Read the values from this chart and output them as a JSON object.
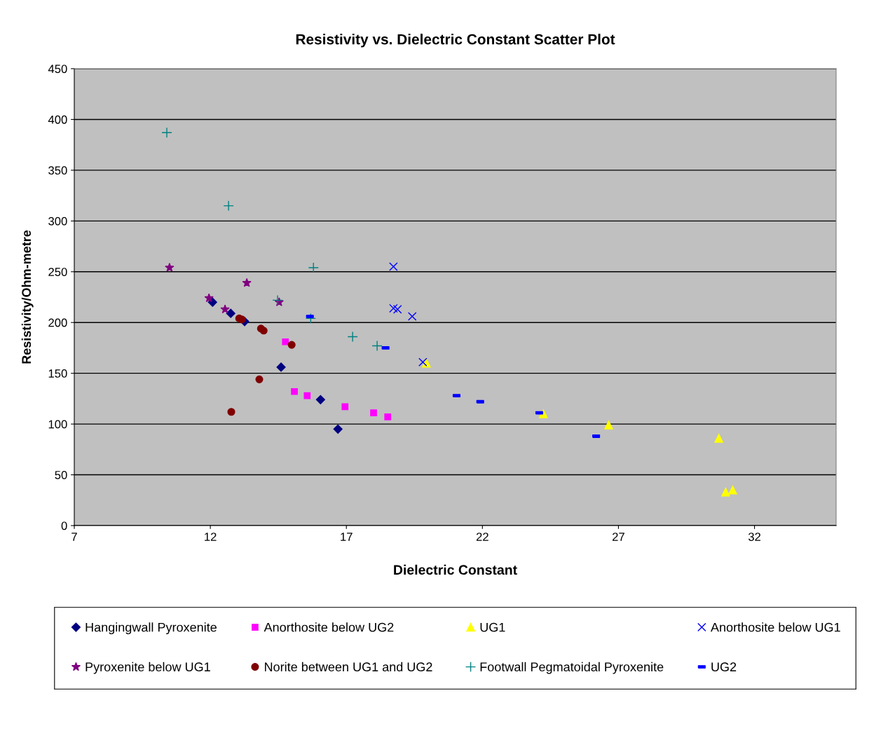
{
  "chart_data": {
    "type": "scatter",
    "title": "Resistivity vs. Dielectric Constant Scatter Plot",
    "xlabel": "Dielectric Constant",
    "ylabel": "Resistivity/Ohm-metre",
    "xlim": [
      7,
      35
    ],
    "xticks": [
      7,
      12,
      17,
      22,
      27,
      32
    ],
    "ylim": [
      0,
      450
    ],
    "yticks": [
      0,
      50,
      100,
      150,
      200,
      250,
      300,
      350,
      400,
      450
    ],
    "grid": "y",
    "legend": "bottom",
    "series": [
      {
        "name": "Hangingwall Pyroxenite",
        "color": "#000080",
        "marker": "diamond",
        "x": [
          12.08,
          12.75,
          13.26,
          14.6,
          16.05,
          16.69
        ],
        "values": [
          220,
          209,
          201,
          156,
          124,
          95
        ]
      },
      {
        "name": "Pyroxenite below UG1",
        "color": "#800080",
        "marker": "star",
        "x": [
          10.5,
          11.95,
          12.54,
          13.34,
          14.53
        ],
        "values": [
          254,
          224,
          213,
          239,
          220
        ]
      },
      {
        "name": "Anorthosite below UG2",
        "color": "#ff00ff",
        "marker": "square",
        "x": [
          14.76,
          15.09,
          15.56,
          16.95,
          18.0,
          18.52
        ],
        "values": [
          181,
          132,
          128,
          117,
          111,
          107
        ]
      },
      {
        "name": "Norite between UG1 and UG2",
        "color": "#800000",
        "marker": "circle",
        "x": [
          12.77,
          13.06,
          13.16,
          13.8,
          13.86,
          13.96,
          14.99
        ],
        "values": [
          112,
          204,
          203,
          144,
          194,
          192,
          178
        ]
      },
      {
        "name": "UG1",
        "color": "#ffff00",
        "marker": "triangle",
        "x": [
          19.94,
          24.24,
          26.64,
          30.69,
          30.94,
          31.2
        ],
        "values": [
          160,
          110,
          99,
          86,
          33,
          35
        ]
      },
      {
        "name": "Footwall Pegmatoidal Pyroxenite",
        "color": "#008080",
        "marker": "plus",
        "x": [
          10.4,
          12.67,
          14.47,
          15.79,
          15.69,
          17.23,
          18.13
        ],
        "values": [
          387,
          315,
          222,
          254,
          204,
          186,
          177
        ]
      },
      {
        "name": "Anorthosite below UG1",
        "color": "#0000ff",
        "marker": "cross",
        "x": [
          18.73,
          18.73,
          18.88,
          19.42,
          19.81
        ],
        "values": [
          255,
          214,
          213,
          206,
          161
        ]
      },
      {
        "name": "UG2",
        "color": "#0000ff",
        "marker": "square",
        "x": [
          15.66,
          18.44,
          21.05,
          21.92,
          24.09,
          26.18
        ],
        "values": [
          206,
          175,
          128,
          122,
          111,
          88
        ]
      }
    ]
  }
}
